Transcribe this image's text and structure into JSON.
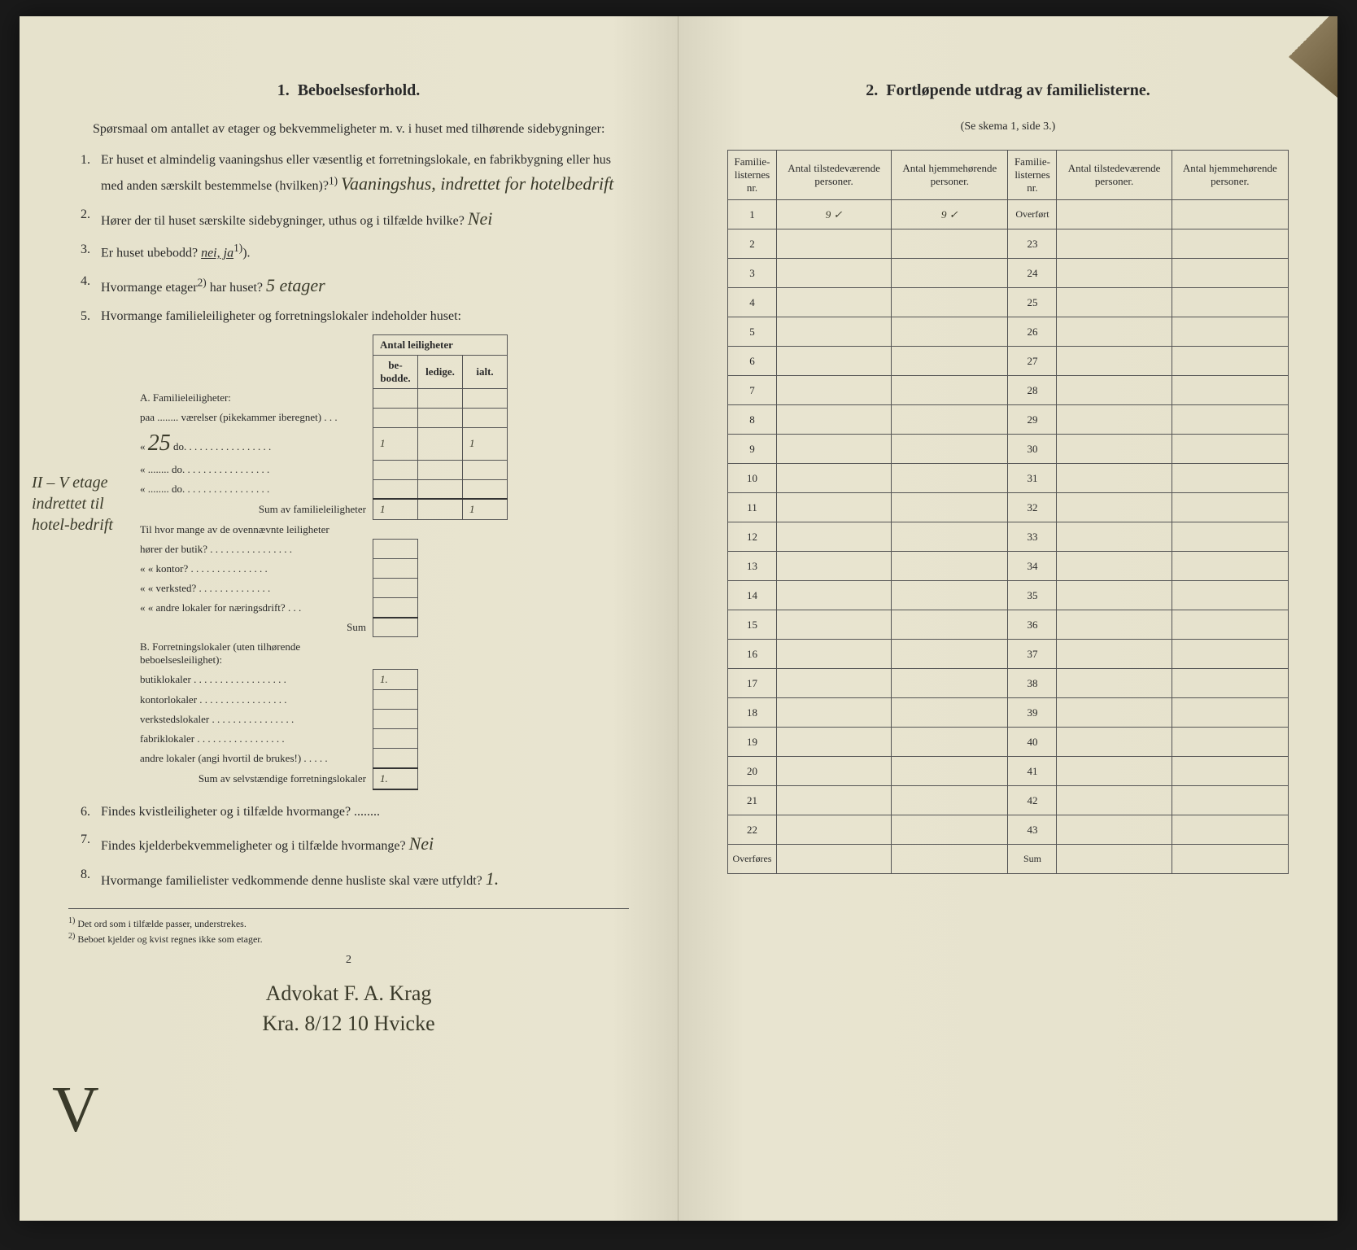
{
  "left": {
    "title_num": "1.",
    "title": "Beboelsesforhold.",
    "intro": "Spørsmaal om antallet av etager og bekvemmeligheter m. v. i huset med tilhørende sidebygninger:",
    "q1_num": "1.",
    "q1": "Er huset et almindelig vaaningshus eller væsentlig et forretningslokale, en fabrikbygning eller hus med anden særskilt bestemmelse (hvilken)?",
    "q1_sup": "1)",
    "q1_answer": "Vaaningshus, indrettet for hotelbedrift",
    "q2_num": "2.",
    "q2": "Hører der til huset særskilte sidebygninger, uthus og i tilfælde hvilke?",
    "q2_answer": "Nei",
    "q3_num": "3.",
    "q3": "Er huset ubebodd?",
    "q3_opts": "nei,  ja",
    "q3_sup": "1)",
    "q4_num": "4.",
    "q4": "Hvormange etager",
    "q4_sup": "2)",
    "q4_cont": " har huset?",
    "q4_answer": "5 etager",
    "q5_num": "5.",
    "q5": "Hvormange familieleiligheter og forretningslokaler indeholder huset:",
    "table_header": "Antal leiligheter",
    "col_bebodde": "be-bodde.",
    "col_ledige": "ledige.",
    "col_ialt": "ialt.",
    "sectionA": "A. Familieleiligheter:",
    "rowA1": "paa ........ værelser (pikekammer iberegnet) . . .",
    "rowA2_pre": "«",
    "rowA2_val": "25",
    "rowA2_post": "do.  . . . . . . . . . . . . . . . .",
    "rowA2_bebodde": "1",
    "rowA2_ialt": "1",
    "rowA3": "«  ........  do.  . . . . . . . . . . . . . . . .",
    "rowA4": "«  ........  do.  . . . . . . . . . . . . . . . .",
    "sumA": "Sum av familieleiligheter",
    "sumA_bebodde": "1",
    "sumA_ialt": "1",
    "til_intro": "Til hvor mange av de ovennævnte leiligheter",
    "til1": "hører der butik? . . . . . . . . . . . . . . . .",
    "til2": "«      «    kontor? . . . . . . . . . . . . . . .",
    "til3": "«      «    verksted? . . . . . . . . . . . . . .",
    "til4": "«      «    andre lokaler for næringsdrift? . . .",
    "til_sum": "Sum",
    "sectionB": "B. Forretningslokaler (uten tilhørende beboelsesleilighet):",
    "rowB1": "butiklokaler . . . . . . . . . . . . . . . . . .",
    "rowB1_val": "1.",
    "rowB2": "kontorlokaler . . . . . . . . . . . . . . . . .",
    "rowB3": "verkstedslokaler . . . . . . . . . . . . . . . .",
    "rowB4": "fabriklokaler . . . . . . . . . . . . . . . . .",
    "rowB5": "andre lokaler (angi hvortil de brukes!) . . . . .",
    "sumB": "Sum av selvstændige forretningslokaler",
    "sumB_val": "1.",
    "q6_num": "6.",
    "q6": "Findes kvistleiligheter og i tilfælde hvormange? ........",
    "q7_num": "7.",
    "q7": "Findes kjelderbekvemmeligheter og i tilfælde hvormange?",
    "q7_answer": "Nei",
    "q8_num": "8.",
    "q8": "Hvormange familielister vedkommende denne husliste skal være utfyldt?",
    "q8_answer": "1.",
    "footnote1_num": "1)",
    "footnote1": "Det ord som i tilfælde passer, understrekes.",
    "footnote2_num": "2)",
    "footnote2": "Beboet kjelder og kvist regnes ikke som etager.",
    "page_num": "2",
    "margin_note": "II – V etage indrettet til hotel-bedrift",
    "signature1": "Advokat F. A. Krag",
    "signature2": "Kra. 8/12 10        Hvicke",
    "check": "V"
  },
  "right": {
    "title_num": "2.",
    "title": "Fortløpende utdrag av familielisterne.",
    "subtitle": "(Se skema 1, side 3.)",
    "col1": "Familie-listernes nr.",
    "col2": "Antal tilstedeværende personer.",
    "col3": "Antal hjemmehørende personer.",
    "col4": "Familie-listernes nr.",
    "col5": "Antal tilstedeværende personer.",
    "col6": "Antal hjemmehørende personer.",
    "row1_val2": "9 ✓",
    "row1_val3": "9  ✓",
    "overført": "Overført",
    "overføres": "Overføres",
    "sum": "Sum",
    "left_rows": [
      1,
      2,
      3,
      4,
      5,
      6,
      7,
      8,
      9,
      10,
      11,
      12,
      13,
      14,
      15,
      16,
      17,
      18,
      19,
      20,
      21,
      22
    ],
    "right_rows": [
      23,
      24,
      25,
      26,
      27,
      28,
      29,
      30,
      31,
      32,
      33,
      34,
      35,
      36,
      37,
      38,
      39,
      40,
      41,
      42,
      43
    ]
  }
}
